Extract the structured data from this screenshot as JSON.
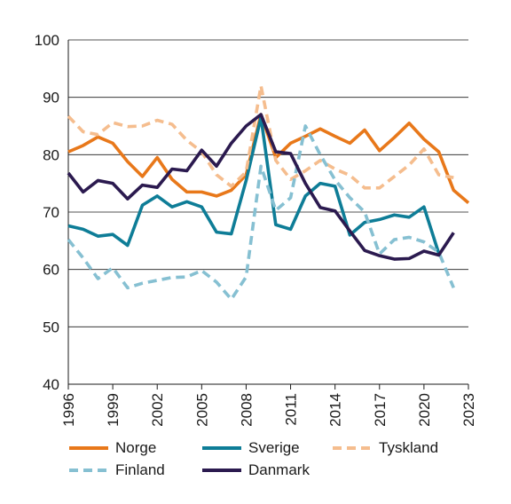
{
  "chart_data": {
    "type": "line",
    "title": "",
    "xlabel": "",
    "ylabel": "",
    "ylim": [
      40,
      100
    ],
    "xlim": [
      1996,
      2023
    ],
    "yticks": [
      40,
      50,
      60,
      70,
      80,
      90,
      100
    ],
    "xticks": [
      1996,
      1999,
      2002,
      2005,
      2008,
      2011,
      2014,
      2017,
      2020,
      2023
    ],
    "grid": "horizontal",
    "legend_position": "bottom",
    "x": [
      1996,
      1997,
      1998,
      1999,
      2000,
      2001,
      2002,
      2003,
      2004,
      2005,
      2006,
      2007,
      2008,
      2009,
      2010,
      2011,
      2012,
      2013,
      2014,
      2015,
      2016,
      2017,
      2018,
      2019,
      2020,
      2021,
      2022,
      2023
    ],
    "series": [
      {
        "name": "Norge",
        "color": "#e8781a",
        "dash": "solid",
        "values": [
          80.5,
          81.6,
          83.1,
          82.0,
          78.8,
          76.2,
          79.5,
          75.7,
          73.5,
          73.5,
          72.8,
          73.8,
          76.5,
          87.0,
          79.5,
          82.0,
          83.2,
          84.5,
          83.2,
          82.0,
          84.3,
          80.7,
          83.0,
          85.5,
          82.7,
          80.5,
          73.8,
          71.6
        ]
      },
      {
        "name": "Sverige",
        "color": "#0e7d97",
        "dash": "solid",
        "values": [
          67.6,
          67.0,
          65.8,
          66.1,
          64.2,
          71.2,
          72.8,
          70.9,
          71.8,
          70.9,
          66.5,
          66.2,
          75.5,
          86.5,
          67.8,
          67.0,
          72.8,
          75.0,
          74.5,
          66.0,
          68.2,
          68.7,
          69.5,
          69.1,
          70.9,
          62.8,
          null,
          null
        ]
      },
      {
        "name": "Tyskland",
        "color": "#f5bd8e",
        "dash": "dash",
        "values": [
          86.7,
          84.0,
          83.5,
          85.6,
          84.9,
          85.0,
          86.0,
          85.3,
          82.5,
          80.5,
          76.5,
          74.5,
          77.0,
          92.0,
          79.0,
          75.7,
          77.2,
          79.0,
          77.5,
          76.4,
          74.2,
          74.2,
          76.2,
          78.2,
          81.0,
          76.5,
          76.0,
          null
        ]
      },
      {
        "name": "Finland",
        "color": "#86c0d2",
        "dash": "dash",
        "values": [
          65.2,
          62.0,
          58.4,
          60.3,
          56.8,
          57.6,
          58.1,
          58.6,
          58.7,
          59.8,
          57.8,
          54.8,
          58.7,
          78.0,
          70.3,
          72.5,
          85.0,
          80.0,
          75.6,
          72.5,
          70.0,
          62.7,
          65.2,
          65.6,
          64.8,
          63.0,
          56.8,
          null
        ]
      },
      {
        "name": "Danmark",
        "color": "#2b1a4f",
        "dash": "solid",
        "values": [
          76.8,
          73.5,
          75.5,
          75.0,
          72.3,
          74.7,
          74.3,
          77.5,
          77.2,
          80.8,
          78.0,
          82.0,
          85.0,
          87.0,
          80.5,
          80.2,
          75.0,
          70.8,
          70.2,
          66.7,
          63.3,
          62.4,
          61.8,
          61.9,
          63.2,
          62.5,
          66.4,
          null
        ]
      }
    ]
  }
}
